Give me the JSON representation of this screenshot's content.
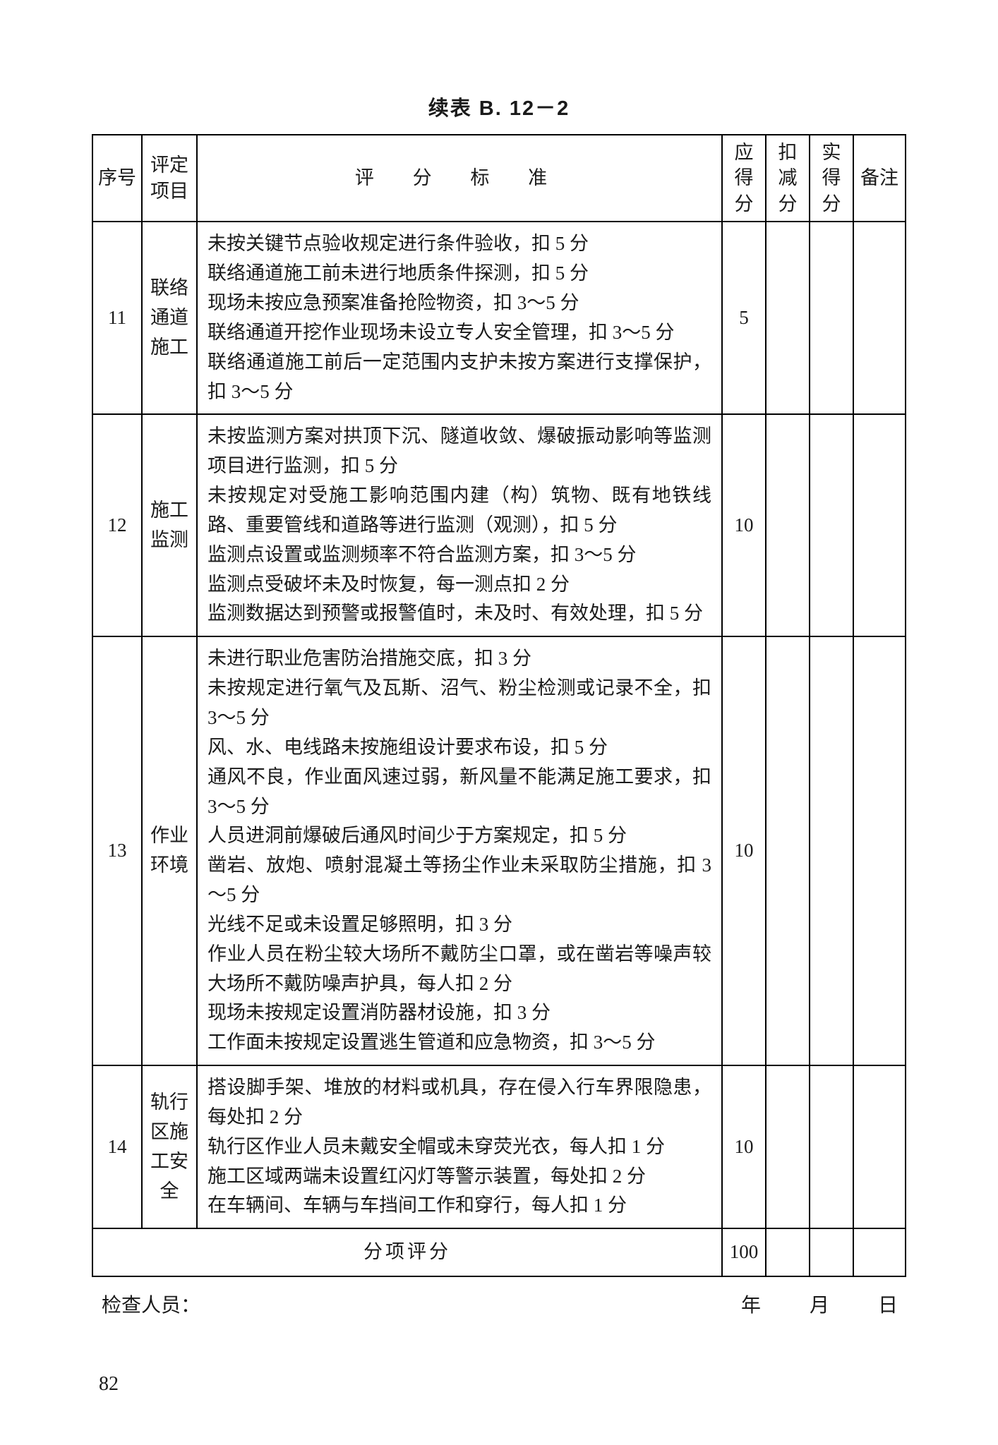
{
  "caption": "续表 B. 12－2",
  "columns": {
    "seq": "序号",
    "item_line1": "评定",
    "item_line2": "项目",
    "criteria": "评 分 标 准",
    "should_line1": "应得",
    "should_line2": "分",
    "deduct_line1": "扣减",
    "deduct_line2": "分",
    "actual_line1": "实得",
    "actual_line2": "分",
    "note": "备注"
  },
  "rows": [
    {
      "seq": "11",
      "item": "联络\n通道\n施工",
      "criteria": "未按关键节点验收规定进行条件验收，扣 5 分\n联络通道施工前未进行地质条件探测，扣 5 分\n现场未按应急预案准备抢险物资，扣 3～5 分\n联络通道开挖作业现场未设立专人安全管理，扣 3～5 分\n联络通道施工前后一定范围内支护未按方案进行支撑保护，扣 3～5 分",
      "score": "5"
    },
    {
      "seq": "12",
      "item": "施工\n监测",
      "criteria": "未按监测方案对拱顶下沉、隧道收敛、爆破振动影响等监测项目进行监测，扣 5 分\n未按规定对受施工影响范围内建（构）筑物、既有地铁线路、重要管线和道路等进行监测（观测），扣 5 分\n监测点设置或监测频率不符合监测方案，扣 3～5 分\n监测点受破坏未及时恢复，每一测点扣 2 分\n监测数据达到预警或报警值时，未及时、有效处理，扣 5 分",
      "score": "10"
    },
    {
      "seq": "13",
      "item": "作业\n环境",
      "criteria": "未进行职业危害防治措施交底，扣 3 分\n未按规定进行氧气及瓦斯、沼气、粉尘检测或记录不全，扣 3～5 分\n风、水、电线路未按施组设计要求布设，扣 5 分\n通风不良，作业面风速过弱，新风量不能满足施工要求，扣 3～5 分\n人员进洞前爆破后通风时间少于方案规定，扣 5 分\n凿岩、放炮、喷射混凝土等扬尘作业未采取防尘措施，扣 3～5 分\n光线不足或未设置足够照明，扣 3 分\n作业人员在粉尘较大场所不戴防尘口罩，或在凿岩等噪声较大场所不戴防噪声护具，每人扣 2 分\n现场未按规定设置消防器材设施，扣 3 分\n工作面未按规定设置逃生管道和应急物资，扣 3～5 分",
      "score": "10"
    },
    {
      "seq": "14",
      "item": "轨行\n区施\n工安\n全",
      "criteria": "搭设脚手架、堆放的材料或机具，存在侵入行车界限隐患，每处扣 2 分\n轨行区作业人员未戴安全帽或未穿荧光衣，每人扣 1 分\n施工区域两端未设置红闪灯等警示装置，每处扣 2 分\n在车辆间、车辆与车挡间工作和穿行，每人扣 1 分",
      "score": "10"
    }
  ],
  "subtotal": {
    "label": "分项评分",
    "score": "100"
  },
  "footer": {
    "inspector": "检查人员：",
    "year": "年",
    "month": "月",
    "day": "日"
  },
  "page_number": "82"
}
